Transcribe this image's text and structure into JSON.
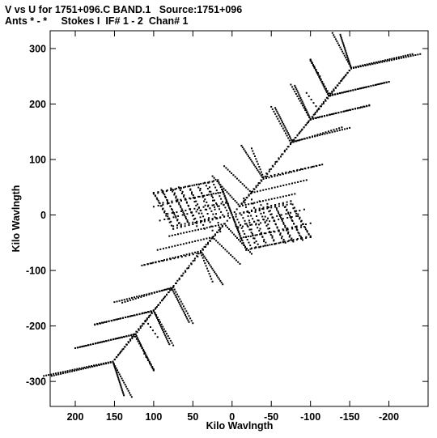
{
  "header": {
    "line1": "V vs U for 1751+096.C BAND.1   Source:1751+096",
    "line2": "Ants * - *     Stokes I  IF# 1 - 2  Chan# 1"
  },
  "chart_data": {
    "type": "scatter",
    "title": "V vs U for 1751+096.C BAND.1   Source:1751+096",
    "subtitle": "Ants * - *     Stokes I  IF# 1 - 2  Chan# 1",
    "xlabel": "Kilo Wavlngth",
    "ylabel": "Kilo Wavlngth",
    "xlim": [
      232,
      -250
    ],
    "ylim": [
      -345,
      332
    ],
    "x_ticks": [
      200,
      150,
      100,
      50,
      0,
      -50,
      -100,
      -150,
      -200
    ],
    "y_ticks": [
      300,
      200,
      100,
      0,
      -100,
      -200,
      -300
    ],
    "x_tick_labels": [
      "200",
      "150",
      "100",
      "50",
      "0",
      "-50",
      "-100",
      "-150",
      "-200"
    ],
    "y_tick_labels": [
      "300",
      "200",
      "100",
      "0",
      "-100",
      "-200",
      "-300"
    ],
    "grid": false,
    "point_color": "#000000",
    "series": [
      {
        "segments": [
          {
            "from": [
              -240,
              290
            ],
            "to": [
              -152,
              264
            ],
            "n": 30
          },
          {
            "from": [
              -200,
              240
            ],
            "to": [
              -123,
              215
            ],
            "n": 28
          },
          {
            "from": [
              -175,
              197
            ],
            "to": [
              -100,
              173
            ],
            "n": 26
          },
          {
            "from": [
              -150,
              157
            ],
            "to": [
              -77,
              132
            ],
            "n": 24
          },
          {
            "from": [
              -115,
              91
            ],
            "to": [
              -40,
              65
            ],
            "n": 22
          },
          {
            "from": [
              -95,
              63
            ],
            "to": [
              -25,
              40
            ],
            "n": 20
          },
          {
            "from": [
              -80,
              38
            ],
            "to": [
              -10,
              16
            ],
            "n": 20
          },
          {
            "from": [
              -138,
              325
            ],
            "to": [
              -152,
              264
            ],
            "n": 22
          },
          {
            "from": [
              -100,
              280
            ],
            "to": [
              -123,
              215
            ],
            "n": 22
          },
          {
            "from": [
              -80,
              233
            ],
            "to": [
              -100,
              173
            ],
            "n": 20
          },
          {
            "from": [
              -55,
              193
            ],
            "to": [
              -77,
              132
            ],
            "n": 20
          },
          {
            "from": [
              -12,
              125
            ],
            "to": [
              -40,
              65
            ],
            "n": 20
          },
          {
            "from": [
              10,
              88
            ],
            "to": [
              -25,
              40
            ],
            "n": 16
          },
          {
            "from": [
              25,
              70
            ],
            "to": [
              -10,
              16
            ],
            "n": 18
          },
          {
            "from": [
              -152,
              264
            ],
            "to": [
              -123,
              215
            ],
            "n": 14
          },
          {
            "from": [
              -123,
              215
            ],
            "to": [
              -100,
              173
            ],
            "n": 12
          },
          {
            "from": [
              -100,
              173
            ],
            "to": [
              -77,
              132
            ],
            "n": 12
          },
          {
            "from": [
              -77,
              132
            ],
            "to": [
              -40,
              65
            ],
            "n": 16
          },
          {
            "from": [
              -40,
              65
            ],
            "to": [
              -10,
              16
            ],
            "n": 14
          },
          {
            "from": [
              100,
              40
            ],
            "to": [
              75,
              -25
            ],
            "n": 12
          },
          {
            "from": [
              90,
              45
            ],
            "to": [
              65,
              -20
            ],
            "n": 12
          },
          {
            "from": [
              78,
              48
            ],
            "to": [
              55,
              -15
            ],
            "n": 12
          },
          {
            "from": [
              68,
              50
            ],
            "to": [
              45,
              -12
            ],
            "n": 12
          },
          {
            "from": [
              55,
              52
            ],
            "to": [
              35,
              -8
            ],
            "n": 12
          },
          {
            "from": [
              45,
              55
            ],
            "to": [
              22,
              -4
            ],
            "n": 12
          },
          {
            "from": [
              35,
              58
            ],
            "to": [
              12,
              0
            ],
            "n": 12
          },
          {
            "from": [
              25,
              60
            ],
            "to": [
              5,
              3
            ],
            "n": 12
          },
          {
            "from": [
              100,
              40
            ],
            "to": [
              25,
              60
            ],
            "n": 14
          },
          {
            "from": [
              88,
              22
            ],
            "to": [
              15,
              40
            ],
            "n": 14
          },
          {
            "from": [
              82,
              2
            ],
            "to": [
              8,
              22
            ],
            "n": 14
          },
          {
            "from": [
              75,
              -25
            ],
            "to": [
              0,
              0
            ],
            "n": 16
          },
          {
            "from": [
              12,
              45
            ],
            "to": [
              0,
              0
            ],
            "n": 14
          },
          {
            "from": [
              0,
              0
            ],
            "to": [
              -18,
              -63
            ],
            "n": 16
          },
          {
            "from": [
              -78,
              12
            ],
            "to": [
              -100,
              -40
            ],
            "n": 12
          },
          {
            "from": [
              -68,
              15
            ],
            "to": [
              -88,
              -42
            ],
            "n": 12
          },
          {
            "from": [
              -55,
              18
            ],
            "to": [
              -75,
              -45
            ],
            "n": 12
          },
          {
            "from": [
              -45,
              20
            ],
            "to": [
              -65,
              -48
            ],
            "n": 12
          },
          {
            "from": [
              -35,
              25
            ],
            "to": [
              -55,
              -52
            ],
            "n": 12
          },
          {
            "from": [
              -25,
              28
            ],
            "to": [
              -42,
              -55
            ],
            "n": 12
          },
          {
            "from": [
              -15,
              30
            ],
            "to": [
              -30,
              -58
            ],
            "n": 12
          },
          {
            "from": [
              0,
              0
            ],
            "to": [
              -75,
              20
            ],
            "n": 16
          },
          {
            "from": [
              -5,
              -20
            ],
            "to": [
              -92,
              10
            ],
            "n": 16
          },
          {
            "from": [
              -12,
              -42
            ],
            "to": [
              -100,
              -15
            ],
            "n": 16
          },
          {
            "from": [
              -18,
              -63
            ],
            "to": [
              -100,
              -38
            ],
            "n": 16
          },
          {
            "from": [
              140,
              -158
            ],
            "to": [
              75,
              -130
            ],
            "n": 20
          },
          {
            "from": [
              175,
              -198
            ],
            "to": [
              100,
              -172
            ],
            "n": 22
          },
          {
            "from": [
              200,
              -240
            ],
            "to": [
              125,
              -215
            ],
            "n": 24
          },
          {
            "from": [
              230,
              -290
            ],
            "to": [
              152,
              -265
            ],
            "n": 28
          },
          {
            "from": [
              75,
              -130
            ],
            "to": [
              50,
              -195
            ],
            "n": 16
          },
          {
            "from": [
              100,
              -172
            ],
            "to": [
              75,
              -235
            ],
            "n": 16
          },
          {
            "from": [
              125,
              -215
            ],
            "to": [
              100,
              -278
            ],
            "n": 16
          },
          {
            "from": [
              152,
              -265
            ],
            "to": [
              128,
              -328
            ],
            "n": 18
          },
          {
            "from": [
              75,
              -130
            ],
            "to": [
              100,
              -172
            ],
            "n": 10
          },
          {
            "from": [
              100,
              -172
            ],
            "to": [
              125,
              -215
            ],
            "n": 10
          },
          {
            "from": [
              125,
              -215
            ],
            "to": [
              152,
              -265
            ],
            "n": 12
          },
          {
            "from": [
              112,
              -90
            ],
            "to": [
              40,
              -68
            ],
            "n": 16
          },
          {
            "from": [
              40,
              -68
            ],
            "to": [
              25,
              -120
            ],
            "n": 12
          },
          {
            "from": [
              40,
              -68
            ],
            "to": [
              75,
              -130
            ],
            "n": 10
          },
          {
            "from": [
              0,
              0
            ],
            "to": [
              40,
              -68
            ],
            "n": 14
          },
          {
            "from": [
              -100,
              280
            ],
            "to": [
              -112,
              250
            ],
            "n": 6
          },
          {
            "from": [
              -95,
              220
            ],
            "to": [
              -110,
              190
            ],
            "n": 6
          }
        ]
      }
    ]
  }
}
